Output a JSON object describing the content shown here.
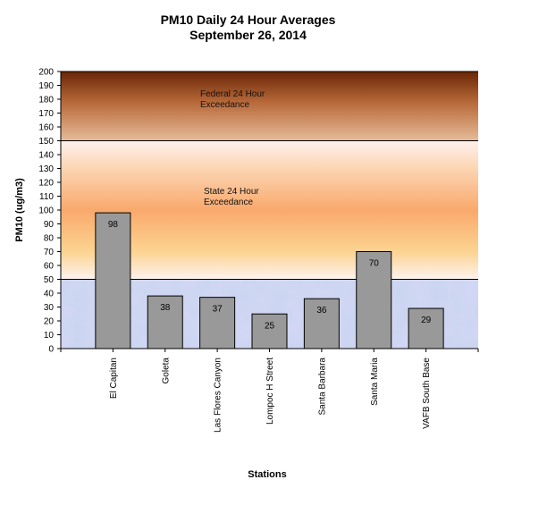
{
  "chart_data": {
    "type": "bar",
    "title": "PM10 Daily 24 Hour Averages",
    "subtitle": "September 26, 2014",
    "xlabel": "Stations",
    "ylabel": "PM10 (ug/m3)",
    "ylim": [
      0,
      200
    ],
    "yticks": [
      0,
      10,
      20,
      30,
      40,
      50,
      60,
      70,
      80,
      90,
      100,
      110,
      120,
      130,
      140,
      150,
      160,
      170,
      180,
      190,
      200
    ],
    "grid": false,
    "categories": [
      "El Capitan",
      "Goleta",
      "Las Flores Canyon",
      "Lompoc H Street",
      "Santa Barbara",
      "Santa Maria",
      "VAFB South Base"
    ],
    "values": [
      98,
      38,
      37,
      25,
      36,
      70,
      29
    ],
    "bar_color": "#999999",
    "bands": [
      {
        "from": 0,
        "to": 50,
        "label": "",
        "color": "#c8d4ef"
      },
      {
        "from": 50,
        "to": 150,
        "label": "State 24 Hour Exceedance",
        "color": "#f8b07a"
      },
      {
        "from": 150,
        "to": 200,
        "label": "Federal 24 Hour Exceedance",
        "color": "#9b4a1c"
      }
    ],
    "band_label_lines": {
      "state": [
        "State 24 Hour",
        "Exceedance"
      ],
      "federal": [
        "Federal 24 Hour",
        "Exceedance"
      ]
    }
  }
}
